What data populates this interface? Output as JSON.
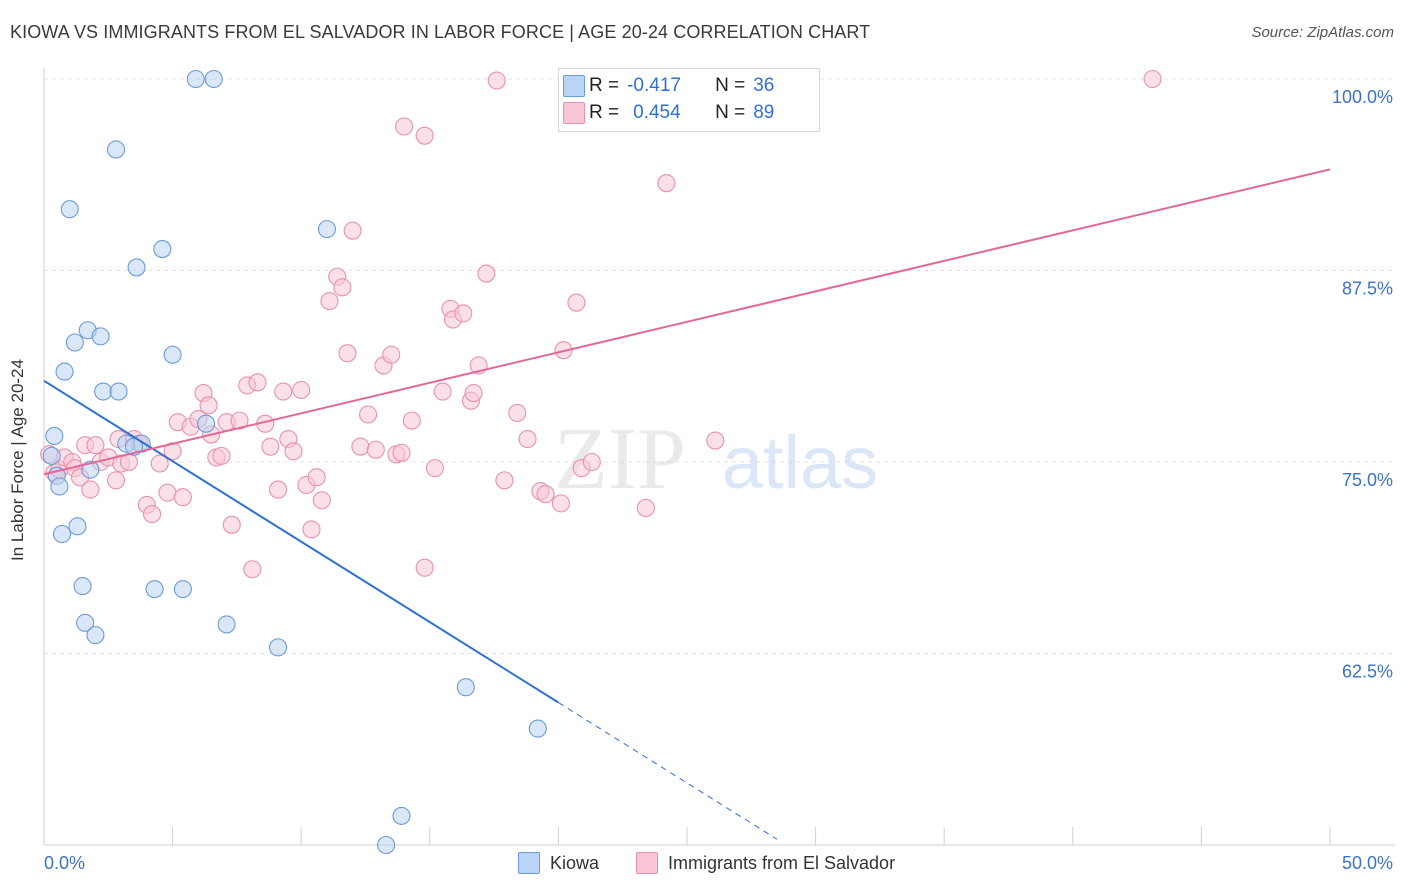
{
  "header": {
    "title": "KIOWA VS IMMIGRANTS FROM EL SALVADOR IN LABOR FORCE | AGE 20-24 CORRELATION CHART",
    "source": "Source: ZipAtlas.com"
  },
  "watermark": {
    "zip": "ZIP",
    "atlas": "atlas"
  },
  "legend": {
    "rows": [
      {
        "r_label": "R =",
        "r_value": "-0.417",
        "n_label": "N =",
        "n_value": "36",
        "color": "#b9d4f4",
        "edge": "#6b9bd8"
      },
      {
        "r_label": "R =",
        "r_value": "0.454",
        "n_label": "N =",
        "n_value": "89",
        "color": "#f9c6d6",
        "edge": "#e792ac"
      }
    ]
  },
  "bottom_legend": {
    "kiowa": "Kiowa",
    "salvador": "Immigrants from El Salvador"
  },
  "chart_data": {
    "type": "scatter",
    "title": "KIOWA VS IMMIGRANTS FROM EL SALVADOR IN LABOR FORCE | AGE 20-24 CORRELATION CHART",
    "ylabel": "In Labor Force | Age 20-24",
    "xlabel": "",
    "xlim": [
      0,
      50
    ],
    "ylim": [
      50,
      100
    ],
    "x_tick_labels": [
      "0.0%",
      "50.0%"
    ],
    "y_ticks": [
      62.5,
      75.0,
      87.5,
      100.0
    ],
    "y_tick_labels": [
      "62.5%",
      "75.0%",
      "87.5%",
      "100.0%"
    ],
    "grid": true,
    "legend_position": "top-center",
    "series": [
      {
        "name": "Kiowa",
        "color": "#b9d4f4",
        "edge": "#6b9bd8",
        "trend": {
          "x0": 0.0,
          "y0": 80.3,
          "x1": 20.0,
          "y1": 59.3,
          "dash_to_x": 28.5,
          "color": "#2f6fd6"
        },
        "points": [
          [
            0.3,
            75.4
          ],
          [
            0.4,
            76.7
          ],
          [
            0.5,
            74.1
          ],
          [
            0.6,
            73.4
          ],
          [
            0.7,
            70.3
          ],
          [
            0.8,
            80.9
          ],
          [
            1.0,
            91.5
          ],
          [
            1.2,
            82.8
          ],
          [
            1.3,
            70.8
          ],
          [
            1.5,
            66.9
          ],
          [
            1.6,
            64.5
          ],
          [
            1.7,
            83.6
          ],
          [
            1.8,
            74.5
          ],
          [
            2.0,
            63.7
          ],
          [
            2.2,
            83.2
          ],
          [
            2.3,
            79.6
          ],
          [
            2.8,
            95.4
          ],
          [
            2.9,
            79.6
          ],
          [
            3.2,
            76.2
          ],
          [
            3.6,
            87.7
          ],
          [
            3.8,
            76.2
          ],
          [
            4.3,
            66.7
          ],
          [
            4.6,
            88.9
          ],
          [
            5.0,
            82.0
          ],
          [
            5.4,
            66.7
          ],
          [
            5.9,
            100.0
          ],
          [
            6.3,
            77.5
          ],
          [
            6.6,
            100.0
          ],
          [
            7.1,
            64.4
          ],
          [
            9.1,
            62.9
          ],
          [
            11.0,
            90.2
          ],
          [
            13.3,
            50.0
          ],
          [
            13.9,
            51.9
          ],
          [
            16.4,
            60.3
          ],
          [
            19.2,
            57.6
          ],
          [
            3.5,
            76.0
          ]
        ]
      },
      {
        "name": "Immigrants from El Salvador",
        "color": "#f9c6d6",
        "edge": "#e792ac",
        "trend": {
          "x0": 0.0,
          "y0": 74.2,
          "x1": 50.0,
          "y1": 94.1,
          "color": "#e2689a"
        },
        "points": [
          [
            0.2,
            75.5
          ],
          [
            0.4,
            74.3
          ],
          [
            0.6,
            74.5
          ],
          [
            0.8,
            75.3
          ],
          [
            1.1,
            75.0
          ],
          [
            1.2,
            74.6
          ],
          [
            1.4,
            74.0
          ],
          [
            1.6,
            76.1
          ],
          [
            1.8,
            73.2
          ],
          [
            2.0,
            76.1
          ],
          [
            2.2,
            75.0
          ],
          [
            2.5,
            75.3
          ],
          [
            2.8,
            73.8
          ],
          [
            2.9,
            76.5
          ],
          [
            3.0,
            74.9
          ],
          [
            3.3,
            75.0
          ],
          [
            3.5,
            76.5
          ],
          [
            3.7,
            76.2
          ],
          [
            4.0,
            72.2
          ],
          [
            4.2,
            71.6
          ],
          [
            4.5,
            74.9
          ],
          [
            4.8,
            73.0
          ],
          [
            5.0,
            75.7
          ],
          [
            5.2,
            77.6
          ],
          [
            5.4,
            72.7
          ],
          [
            5.7,
            77.3
          ],
          [
            6.0,
            77.8
          ],
          [
            6.2,
            79.5
          ],
          [
            6.4,
            78.7
          ],
          [
            6.5,
            76.8
          ],
          [
            6.7,
            75.3
          ],
          [
            6.9,
            75.4
          ],
          [
            7.1,
            77.6
          ],
          [
            7.3,
            70.9
          ],
          [
            7.6,
            77.7
          ],
          [
            7.9,
            80.0
          ],
          [
            8.1,
            68.0
          ],
          [
            8.3,
            80.2
          ],
          [
            8.6,
            77.5
          ],
          [
            8.8,
            76.0
          ],
          [
            9.1,
            73.2
          ],
          [
            9.3,
            79.6
          ],
          [
            9.5,
            76.5
          ],
          [
            9.7,
            75.7
          ],
          [
            10.0,
            79.7
          ],
          [
            10.2,
            73.5
          ],
          [
            10.4,
            70.6
          ],
          [
            10.6,
            74.0
          ],
          [
            10.8,
            72.5
          ],
          [
            11.1,
            85.5
          ],
          [
            11.4,
            87.1
          ],
          [
            11.6,
            86.4
          ],
          [
            11.8,
            82.1
          ],
          [
            12.0,
            90.1
          ],
          [
            12.3,
            76.0
          ],
          [
            12.6,
            78.1
          ],
          [
            12.9,
            75.8
          ],
          [
            13.2,
            81.3
          ],
          [
            13.5,
            82.0
          ],
          [
            13.7,
            75.5
          ],
          [
            14.0,
            96.9
          ],
          [
            14.3,
            77.7
          ],
          [
            14.8,
            96.3
          ],
          [
            15.2,
            74.6
          ],
          [
            15.5,
            79.6
          ],
          [
            15.8,
            85.0
          ],
          [
            15.9,
            84.3
          ],
          [
            16.3,
            84.7
          ],
          [
            16.6,
            79.0
          ],
          [
            16.9,
            81.3
          ],
          [
            17.2,
            87.3
          ],
          [
            17.6,
            99.9
          ],
          [
            17.9,
            73.8
          ],
          [
            18.4,
            78.2
          ],
          [
            18.8,
            76.5
          ],
          [
            19.3,
            73.1
          ],
          [
            19.5,
            72.9
          ],
          [
            20.1,
            72.3
          ],
          [
            20.2,
            82.3
          ],
          [
            20.7,
            85.4
          ],
          [
            20.9,
            74.6
          ],
          [
            21.3,
            75.0
          ],
          [
            23.4,
            72.0
          ],
          [
            24.2,
            93.2
          ],
          [
            26.1,
            76.4
          ],
          [
            43.1,
            100.0
          ],
          [
            13.9,
            75.6
          ],
          [
            16.7,
            79.5
          ],
          [
            14.8,
            68.1
          ]
        ]
      }
    ]
  }
}
